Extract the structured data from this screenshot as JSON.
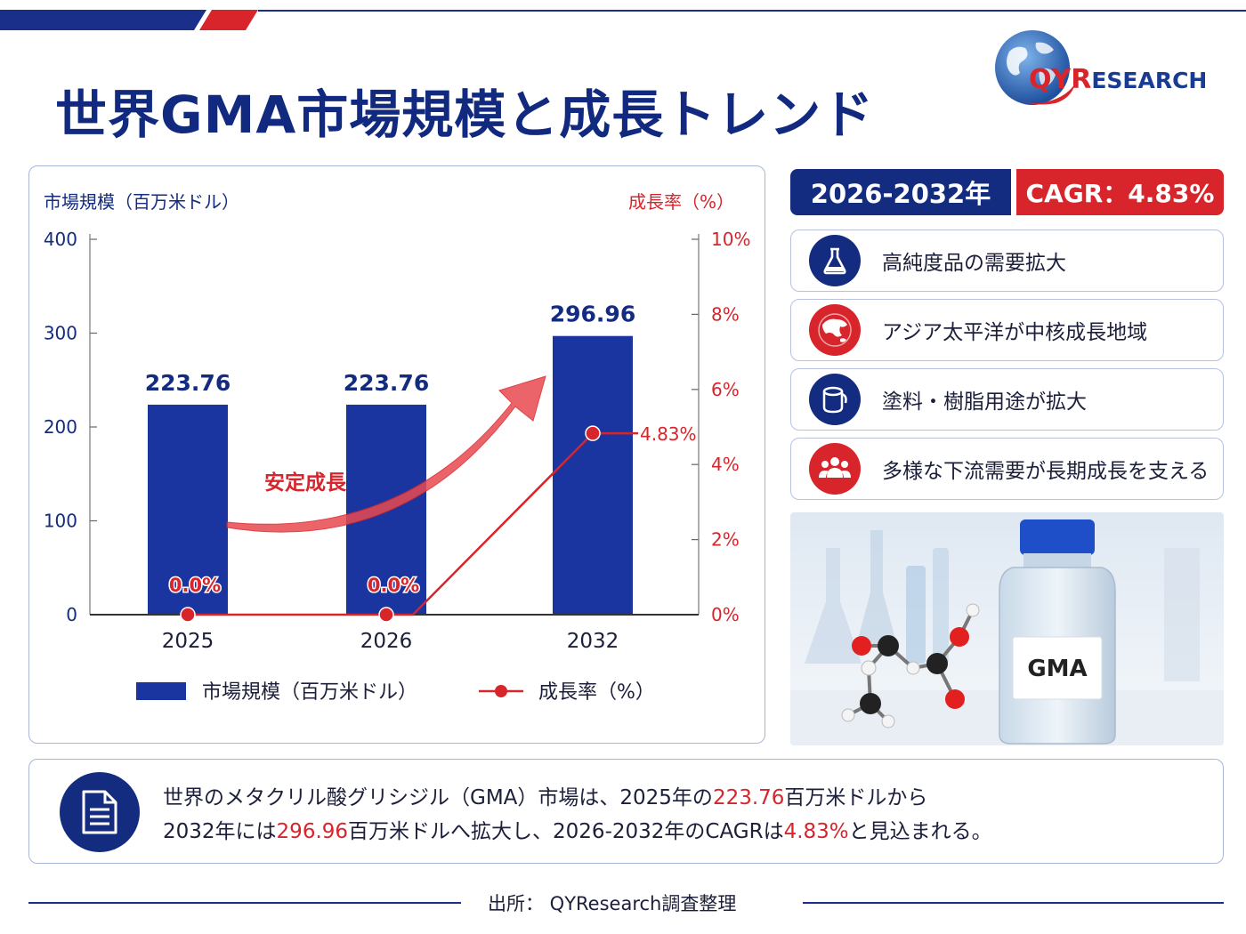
{
  "title": "世界GMA市場規模と成長トレンド",
  "logo": {
    "qy": "QYR",
    "rest": "ESEARCH"
  },
  "colors": {
    "navy": "#142c7f",
    "red": "#d8242b",
    "bar": "#1a35a0",
    "line": "#d8242b"
  },
  "chart_data": {
    "type": "bar",
    "categories": [
      "2025",
      "2026",
      "2032"
    ],
    "series": [
      {
        "name": "市場規模（百万米ドル）",
        "type": "bar",
        "axis": "left",
        "values": [
          223.76,
          223.76,
          296.96
        ]
      },
      {
        "name": "成長率（%）",
        "type": "line",
        "axis": "right",
        "values": [
          0.0,
          0.0,
          4.83
        ]
      }
    ],
    "bar_labels": [
      "223.76",
      "223.76",
      "296.96"
    ],
    "line_labels": [
      "0.0%",
      "0.0%",
      "4.83%"
    ],
    "y_left": {
      "title": "市場規模（百万米ドル）",
      "min": 0,
      "max": 400,
      "ticks": [
        0,
        100,
        200,
        300,
        400
      ],
      "tick_labels": [
        "0",
        "100",
        "200",
        "300",
        "400"
      ]
    },
    "y_right": {
      "title": "成長率（%）",
      "min": 0,
      "max": 10,
      "ticks": [
        0,
        2,
        4,
        6,
        8,
        10
      ],
      "tick_labels": [
        "0%",
        "2%",
        "4%",
        "6%",
        "8%",
        "10%"
      ]
    },
    "annotation": "安定成長",
    "legend": [
      "市場規模（百万米ドル）",
      "成長率（%）"
    ],
    "legend_position": "bottom",
    "grid": false
  },
  "cagr": {
    "period": "2026-2032年",
    "label": "CAGR：4.83%"
  },
  "features": [
    {
      "icon": "flask-icon",
      "text": "高純度品の需要拡大"
    },
    {
      "icon": "asia-map-icon",
      "text": "アジア太平洋が中核成長地域"
    },
    {
      "icon": "paint-bucket-icon",
      "text": "塗料・樹脂用途が拡大"
    },
    {
      "icon": "people-group-icon",
      "text": "多様な下流需要が長期成長を支える"
    }
  ],
  "photo": {
    "bottle_label": "GMA"
  },
  "summary": {
    "line1_a": "世界のメタクリル酸グリシジル（GMA）市場は、2025年の",
    "line1_hl": "223.76",
    "line1_b": "百万米ドルから",
    "line2_a": "2032年には",
    "line2_hl1": "296.96",
    "line2_b": "百万米ドルへ拡大し、2026-2032年のCAGRは",
    "line2_hl2": "4.83%",
    "line2_c": "と見込まれる。"
  },
  "footer": "出所： QYResearch調査整理"
}
